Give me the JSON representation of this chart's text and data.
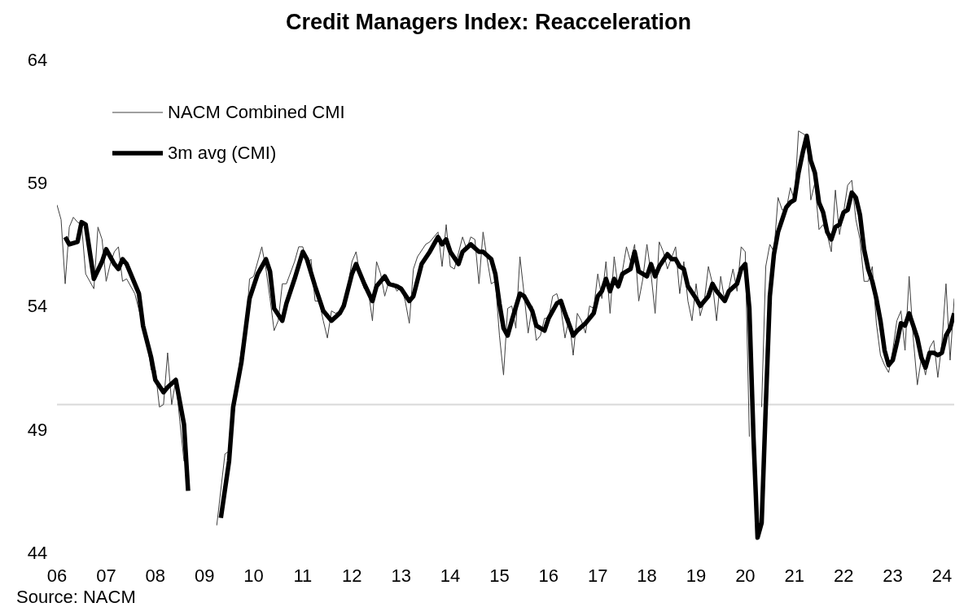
{
  "chart_data": {
    "type": "line",
    "title": "Credit Managers Index: Reacceleration",
    "annotations": [
      "Source: NACM"
    ],
    "xlim": [
      "2006-01",
      "2024-04"
    ],
    "ylim": [
      44,
      64
    ],
    "yticks": [
      44,
      49,
      54,
      59,
      64
    ],
    "xticks": [
      {
        "value": "2006-01",
        "label": "06"
      },
      {
        "value": "2007-01",
        "label": "07"
      },
      {
        "value": "2008-01",
        "label": "08"
      },
      {
        "value": "2009-01",
        "label": "09"
      },
      {
        "value": "2010-01",
        "label": "10"
      },
      {
        "value": "2011-01",
        "label": "11"
      },
      {
        "value": "2012-01",
        "label": "12"
      },
      {
        "value": "2013-01",
        "label": "13"
      },
      {
        "value": "2014-01",
        "label": "14"
      },
      {
        "value": "2015-01",
        "label": "15"
      },
      {
        "value": "2016-01",
        "label": "16"
      },
      {
        "value": "2017-01",
        "label": "17"
      },
      {
        "value": "2018-01",
        "label": "18"
      },
      {
        "value": "2019-01",
        "label": "19"
      },
      {
        "value": "2020-01",
        "label": "20"
      },
      {
        "value": "2021-01",
        "label": "21"
      },
      {
        "value": "2022-01",
        "label": "22"
      },
      {
        "value": "2023-01",
        "label": "23"
      },
      {
        "value": "2024-01",
        "label": "24"
      }
    ],
    "grid": false,
    "legend": "top left",
    "marker": "none",
    "line_style": "solid",
    "ref_lines": [
      {
        "axis": "y",
        "value": 50,
        "color": "#d9d9d9"
      }
    ],
    "series": [
      {
        "name": "NACM Combined CMI",
        "color": "#404040",
        "x": [
          "2006-01",
          "2006-02",
          "2006-03",
          "2006-04",
          "2006-05",
          "2006-06",
          "2006-07",
          "2006-08",
          "2006-10",
          "2006-11",
          "2006-12",
          "2007-01",
          "2007-02",
          "2007-03",
          "2007-04",
          "2007-05",
          "2007-06",
          "2007-08",
          "2007-10",
          "2007-11",
          "2007-12",
          "2008-01",
          "2008-02",
          "2008-03",
          "2008-04",
          "2008-05",
          "2008-06",
          "2008-07",
          "2008-08",
          "2008-09",
          "2009-03",
          "2009-04",
          "2009-06",
          "2009-07",
          "2009-08",
          "2009-09",
          "2009-10",
          "2009-11",
          "2009-12",
          "2010-01",
          "2010-02",
          "2010-03",
          "2010-04",
          "2010-05",
          "2010-06",
          "2010-07",
          "2010-08",
          "2010-09",
          "2010-11",
          "2010-12",
          "2011-01",
          "2011-02",
          "2011-03",
          "2011-04",
          "2011-05",
          "2011-06",
          "2011-07",
          "2011-08",
          "2011-09",
          "2011-10",
          "2011-11",
          "2011-12",
          "2012-01",
          "2012-02",
          "2012-03",
          "2012-04",
          "2012-05",
          "2012-06",
          "2012-07",
          "2012-08",
          "2012-09",
          "2012-10",
          "2012-11",
          "2012-12",
          "2013-01",
          "2013-02",
          "2013-03",
          "2013-04",
          "2013-05",
          "2013-07",
          "2013-08",
          "2013-10",
          "2013-11",
          "2013-12",
          "2014-01",
          "2014-02",
          "2014-04",
          "2014-05",
          "2014-06",
          "2014-07",
          "2014-08",
          "2014-09",
          "2014-10",
          "2014-11",
          "2014-12",
          "2015-01",
          "2015-02",
          "2015-03",
          "2015-04",
          "2015-05",
          "2015-06",
          "2015-07",
          "2015-08",
          "2015-09",
          "2015-10",
          "2015-11",
          "2015-12",
          "2016-01",
          "2016-02",
          "2016-03",
          "2016-04",
          "2016-05",
          "2016-06",
          "2016-07",
          "2016-08",
          "2016-09",
          "2016-10",
          "2016-11",
          "2016-12",
          "2017-01",
          "2017-02",
          "2017-03",
          "2017-04",
          "2017-05",
          "2017-06",
          "2017-07",
          "2017-08",
          "2017-09",
          "2017-10",
          "2017-11",
          "2017-12",
          "2018-01",
          "2018-02",
          "2018-03",
          "2018-04",
          "2018-05",
          "2018-06",
          "2018-08",
          "2018-09",
          "2018-10",
          "2018-11",
          "2018-12",
          "2019-01",
          "2019-02",
          "2019-03",
          "2019-04",
          "2019-05",
          "2019-06",
          "2019-07",
          "2019-08",
          "2019-09",
          "2019-10",
          "2019-11",
          "2019-12",
          "2020-01",
          "2020-02",
          "2020-03",
          "2020-04",
          "2020-05",
          "2020-06",
          "2020-07",
          "2020-08",
          "2020-09",
          "2020-10",
          "2020-11",
          "2020-12",
          "2021-01",
          "2021-02",
          "2021-03",
          "2021-04",
          "2021-05",
          "2021-06",
          "2021-07",
          "2021-08",
          "2021-09",
          "2021-10",
          "2021-11",
          "2021-12",
          "2022-01",
          "2022-02",
          "2022-03",
          "2022-04",
          "2022-05",
          "2022-06",
          "2022-07",
          "2022-08",
          "2022-09",
          "2022-10",
          "2022-11",
          "2022-12",
          "2023-01",
          "2023-02",
          "2023-03",
          "2023-04",
          "2023-05",
          "2023-06",
          "2023-07",
          "2023-08",
          "2023-09",
          "2023-10",
          "2023-11",
          "2023-12",
          "2024-01",
          "2024-02",
          "2024-03",
          "2024-04"
        ],
        "values": [
          58.1,
          57.5,
          54.9,
          57.2,
          57.6,
          57.4,
          57.3,
          55.3,
          54.7,
          57.2,
          56.7,
          55.0,
          55.7,
          56.2,
          56.4,
          55.0,
          55.1,
          54.5,
          53.2,
          52.5,
          51.4,
          51.4,
          49.9,
          50.0,
          52.1,
          50.0,
          51.0,
          49.3,
          47.7,
          null,
          null,
          45.1,
          48.0,
          48.1,
          49.3,
          51.0,
          52.2,
          52.8,
          55.1,
          55.2,
          55.8,
          56.4,
          55.5,
          54.3,
          53.0,
          53.4,
          54.9,
          54.9,
          55.8,
          56.4,
          56.4,
          55.7,
          55.9,
          54.2,
          54.2,
          53.4,
          52.7,
          53.8,
          53.7,
          53.8,
          54.2,
          54.8,
          55.8,
          56.2,
          55.2,
          54.7,
          54.6,
          53.4,
          55.8,
          55.3,
          54.4,
          55.0,
          54.9,
          54.6,
          54.8,
          54.2,
          53.3,
          55.5,
          56.0,
          56.5,
          56.6,
          57.0,
          55.6,
          57.3,
          55.6,
          55.5,
          56.8,
          56.3,
          56.8,
          56.7,
          54.9,
          57.0,
          55.9,
          54.9,
          55.0,
          52.8,
          51.2,
          53.9,
          54.0,
          53.1,
          56.0,
          54.5,
          52.9,
          54.0,
          52.6,
          52.8,
          53.5,
          53.5,
          54.4,
          54.5,
          53.9,
          52.7,
          53.5,
          52.0,
          53.7,
          53.4,
          52.9,
          54.0,
          53.9,
          55.3,
          54.3,
          55.8,
          53.7,
          56.0,
          54.7,
          55.4,
          56.4,
          55.8,
          56.5,
          54.2,
          55.1,
          56.5,
          55.3,
          53.7,
          56.6,
          56.2,
          55.5,
          56.4,
          54.5,
          55.8,
          54.2,
          53.4,
          54.9,
          53.6,
          54.2,
          55.6,
          54.9,
          53.4,
          55.2,
          54.2,
          54.7,
          55.5,
          54.6,
          56.4,
          56.2,
          48.7,
          null,
          null,
          49.9,
          55.6,
          56.5,
          56.2,
          58.4,
          57.9,
          57.9,
          58.8,
          58.3,
          61.1,
          61.0,
          60.9,
          58.3,
          59.0,
          57.1,
          57.3,
          56.9,
          56.2,
          58.7,
          56.9,
          57.8,
          58.9,
          59.1,
          57.5,
          56.7,
          55.0,
          55.0,
          55.6,
          53.3,
          52.0,
          51.6,
          51.3,
          52.2,
          53.4,
          53.8,
          52.2,
          55.2,
          52.7,
          50.8,
          51.9,
          51.2,
          52.3,
          52.6,
          51.1,
          52.5,
          54.9,
          51.8,
          54.3
        ]
      },
      {
        "name": "3m avg (CMI)",
        "color": "#000000",
        "x": [
          "2006-03",
          "2006-04",
          "2006-06",
          "2006-07",
          "2006-08",
          "2006-09",
          "2006-10",
          "2006-12",
          "2007-01",
          "2007-03",
          "2007-04",
          "2007-05",
          "2007-06",
          "2007-07",
          "2007-09",
          "2007-10",
          "2007-12",
          "2008-01",
          "2008-03",
          "2008-04",
          "2008-06",
          "2008-07",
          "2008-08",
          "2008-09",
          "2008-10",
          "2009-04",
          "2009-05",
          "2009-07",
          "2009-08",
          "2009-10",
          "2009-11",
          "2009-12",
          "2010-02",
          "2010-04",
          "2010-05",
          "2010-06",
          "2010-08",
          "2010-09",
          "2010-11",
          "2011-01",
          "2011-02",
          "2011-04",
          "2011-06",
          "2011-08",
          "2011-10",
          "2011-11",
          "2012-01",
          "2012-02",
          "2012-04",
          "2012-06",
          "2012-07",
          "2012-09",
          "2012-10",
          "2012-12",
          "2013-01",
          "2013-03",
          "2013-04",
          "2013-06",
          "2013-08",
          "2013-10",
          "2013-11",
          "2013-12",
          "2014-01",
          "2014-03",
          "2014-04",
          "2014-06",
          "2014-08",
          "2014-09",
          "2014-11",
          "2014-12",
          "2015-01",
          "2015-02",
          "2015-03",
          "2015-04",
          "2015-06",
          "2015-07",
          "2015-09",
          "2015-10",
          "2015-12",
          "2016-01",
          "2016-03",
          "2016-04",
          "2016-05",
          "2016-07",
          "2016-08",
          "2016-10",
          "2016-12",
          "2017-01",
          "2017-02",
          "2017-03",
          "2017-04",
          "2017-05",
          "2017-06",
          "2017-07",
          "2017-09",
          "2017-10",
          "2017-11",
          "2018-01",
          "2018-02",
          "2018-03",
          "2018-04",
          "2018-06",
          "2018-07",
          "2018-08",
          "2018-09",
          "2018-10",
          "2018-11",
          "2019-01",
          "2019-02",
          "2019-04",
          "2019-05",
          "2019-06",
          "2019-08",
          "2019-09",
          "2019-11",
          "2019-12",
          "2020-01",
          "2020-02",
          "2020-03",
          "2020-04",
          "2020-05",
          "2020-06",
          "2020-07",
          "2020-08",
          "2020-09",
          "2020-10",
          "2020-11",
          "2020-12",
          "2021-01",
          "2021-02",
          "2021-03",
          "2021-04",
          "2021-05",
          "2021-06",
          "2021-07",
          "2021-08",
          "2021-09",
          "2021-10",
          "2021-11",
          "2021-12",
          "2022-01",
          "2022-02",
          "2022-03",
          "2022-04",
          "2022-05",
          "2022-06",
          "2022-07",
          "2022-08",
          "2022-09",
          "2022-10",
          "2022-11",
          "2022-12",
          "2023-01",
          "2023-02",
          "2023-03",
          "2023-04",
          "2023-05",
          "2023-06",
          "2023-07",
          "2023-08",
          "2023-09",
          "2023-10",
          "2023-11",
          "2023-12",
          "2024-01",
          "2024-02",
          "2024-03",
          "2024-04"
        ],
        "values": [
          56.8,
          56.5,
          56.6,
          57.4,
          57.3,
          56.2,
          55.1,
          55.8,
          56.3,
          55.7,
          55.5,
          55.9,
          55.7,
          55.3,
          54.5,
          53.2,
          51.9,
          51.0,
          50.5,
          50.7,
          51.0,
          50.1,
          49.2,
          46.5,
          null,
          null,
          45.4,
          47.7,
          49.9,
          51.7,
          53.0,
          54.3,
          55.3,
          55.9,
          55.4,
          53.9,
          53.4,
          54.1,
          55.1,
          56.2,
          55.9,
          54.8,
          53.8,
          53.4,
          53.7,
          54.0,
          55.3,
          55.7,
          54.9,
          54.2,
          54.8,
          55.2,
          54.9,
          54.8,
          54.7,
          54.2,
          54.4,
          55.7,
          56.2,
          56.8,
          56.5,
          56.7,
          56.2,
          55.7,
          56.2,
          56.5,
          56.2,
          56.2,
          55.9,
          55.3,
          54.1,
          53.1,
          52.8,
          53.4,
          54.5,
          54.4,
          53.8,
          53.2,
          53.0,
          53.5,
          54.1,
          54.2,
          53.7,
          52.8,
          53.0,
          53.3,
          53.7,
          54.4,
          54.6,
          55.1,
          54.6,
          55.1,
          54.8,
          55.3,
          55.5,
          56.2,
          55.4,
          55.2,
          55.7,
          55.2,
          55.6,
          56.1,
          55.9,
          55.9,
          55.6,
          55.5,
          54.8,
          54.3,
          54.0,
          54.4,
          54.9,
          54.6,
          54.2,
          54.6,
          54.9,
          55.5,
          55.7,
          53.9,
          48.7,
          44.6,
          45.2,
          49.9,
          54.4,
          56.1,
          57.0,
          57.5,
          58.0,
          58.2,
          58.3,
          59.4,
          60.2,
          60.9,
          59.9,
          59.4,
          58.2,
          57.8,
          57.0,
          56.7,
          57.2,
          57.3,
          57.8,
          57.9,
          58.6,
          58.4,
          57.7,
          56.3,
          55.5,
          55.0,
          54.3,
          53.4,
          52.2,
          51.6,
          51.8,
          52.5,
          53.3,
          53.2,
          53.7,
          53.2,
          52.7,
          51.9,
          51.5,
          52.1,
          52.1,
          52.0,
          52.1,
          52.8,
          53.1,
          53.7
        ]
      }
    ]
  }
}
